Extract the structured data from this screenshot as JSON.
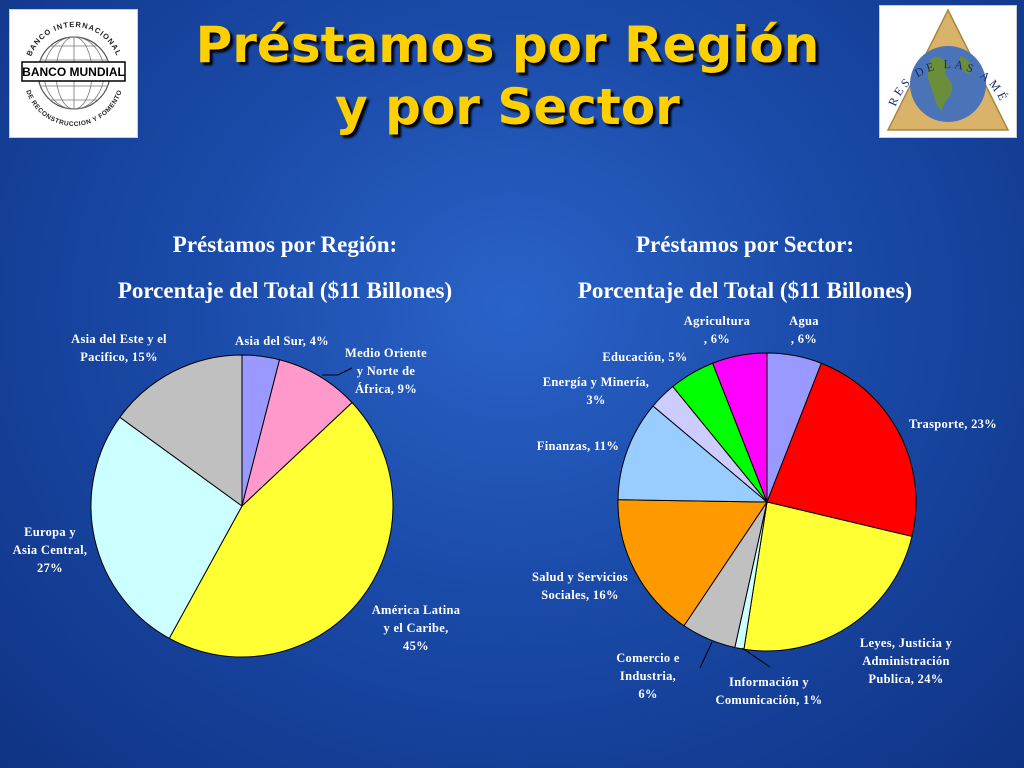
{
  "title": {
    "line1": "Préstamos por Región",
    "line2": "y por Sector"
  },
  "logos": {
    "left": {
      "name": "BANCO MUNDIAL",
      "ring_top": "BANCO INTERNACIONAL",
      "ring_bottom": "DE RECONSTRUCCION Y FOMENTO"
    },
    "right": {
      "ring": "CUMBRES DE LAS AMÉRICAS"
    }
  },
  "chart_data": [
    {
      "type": "pie",
      "heading_line1": "Préstamos por Región:",
      "heading_line2": "Porcentaje del Total ($11 Billones)",
      "slices": [
        {
          "label_lines": [
            "Asia del Sur, 4%"
          ],
          "value": 4,
          "color": "#9999ff"
        },
        {
          "label_lines": [
            "Medio Oriente",
            "y  Norte de",
            "África, 9%"
          ],
          "value": 9,
          "color": "#ff99cc"
        },
        {
          "label_lines": [
            "América Latina",
            "y el Caribe,",
            "45%"
          ],
          "value": 45,
          "color": "#ffff33"
        },
        {
          "label_lines": [
            "Europa y",
            "Asia Central,",
            "27%"
          ],
          "value": 27,
          "color": "#ccffff"
        },
        {
          "label_lines": [
            "Asia del Este y el",
            "Pacifico, 15%"
          ],
          "value": 15,
          "color": "#c0c0c0"
        }
      ]
    },
    {
      "type": "pie",
      "heading_line1": "Préstamos por Sector:",
      "heading_line2": "Porcentaje del Total ($11 Billones)",
      "slices": [
        {
          "label_lines": [
            "Agua",
            ", 6%"
          ],
          "value": 6,
          "color": "#9999ff"
        },
        {
          "label_lines": [
            "Trasporte, 23%"
          ],
          "value": 23,
          "color": "#ff0000"
        },
        {
          "label_lines": [
            "Leyes, Justicia y",
            "Administración",
            "Publica, 24%"
          ],
          "value": 24,
          "color": "#ffff33"
        },
        {
          "label_lines": [
            "Información y",
            "Comunicación, 1%"
          ],
          "value": 1,
          "color": "#ccffff"
        },
        {
          "label_lines": [
            "Comercio e",
            "Industria,",
            "6%"
          ],
          "value": 6,
          "color": "#c0c0c0"
        },
        {
          "label_lines": [
            "Salud y Servicios",
            "Sociales, 16%"
          ],
          "value": 16,
          "color": "#ff9900"
        },
        {
          "label_lines": [
            "Finanzas, 11%"
          ],
          "value": 11,
          "color": "#99ccff"
        },
        {
          "label_lines": [
            "Energía y Minería,",
            "3%"
          ],
          "value": 3,
          "color": "#ccccff"
        },
        {
          "label_lines": [
            "Educación, 5%"
          ],
          "value": 5,
          "color": "#00ff00"
        },
        {
          "label_lines": [
            "Agricultura",
            ", 6%"
          ],
          "value": 6,
          "color": "#ff00ff"
        }
      ]
    }
  ]
}
